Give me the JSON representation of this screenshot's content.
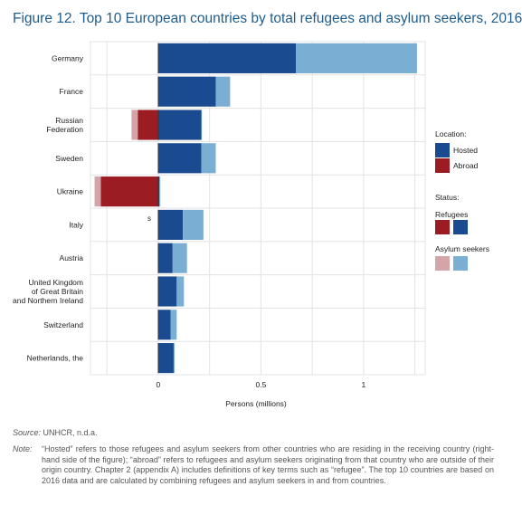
{
  "title": "Figure 12. Top 10 European countries by total refugees and asylum seekers, 2016",
  "source_label": "Source:",
  "source_text": "UNHCR, n.d.a.",
  "note_label": "Note:",
  "note_text": "“Hosted” refers to those refugees and asylum seekers from other countries who are residing in the receiving country (right-hand side of the figure); “abroad” refers to refugees and asylum seekers originating from that country who are outside of their origin country. Chapter 2 (appendix A) includes definitions of key terms such as “refugee”. The top 10 countries are based on 2016 data and are calculated by combining refugees and asylum seekers in and from countries.",
  "stray_label": "s",
  "legend": {
    "location_title": "Location:",
    "hosted": "Hosted",
    "abroad": "Abroad",
    "status_title": "Status:",
    "refugees": "Refugees",
    "asylum_seekers": "Asylum seekers"
  },
  "colors": {
    "hosted_refugees": "#1a4a8f",
    "hosted_asylum": "#7aaed3",
    "abroad_refugees": "#9b1c23",
    "abroad_asylum": "#d3a5a8",
    "grid": "#e3e3e3",
    "title": "#1d5c8c"
  },
  "chart_data": {
    "type": "bar",
    "orientation": "horizontal",
    "stacked": true,
    "xlabel": "Persons (millions)",
    "xlim": [
      -0.33,
      1.3
    ],
    "xticks": [
      0,
      0.5,
      1
    ],
    "xtick_labels": [
      "0",
      "0.5",
      "1"
    ],
    "grid": true,
    "legend_position": "right",
    "categories": [
      "Germany",
      "France",
      "Russian Federation",
      "Sweden",
      "Ukraine",
      "Italy",
      "Austria",
      "United Kingdom of Great Britain and Northern Ireland",
      "Switzerland",
      "Netherlands, the"
    ],
    "category_lines": [
      [
        "Germany"
      ],
      [
        "France"
      ],
      [
        "Russian",
        "Federation"
      ],
      [
        "Sweden"
      ],
      [
        "Ukraine"
      ],
      [
        "Italy"
      ],
      [
        "Austria"
      ],
      [
        "United Kingdom",
        "of Great Britain",
        "and Northern Ireland"
      ],
      [
        "Switzerland"
      ],
      [
        "Netherlands, the"
      ]
    ],
    "series": [
      {
        "name": "Hosted refugees",
        "location": "hosted",
        "status": "refugees",
        "values": [
          0.67,
          0.28,
          0.21,
          0.21,
          0.005,
          0.12,
          0.07,
          0.09,
          0.06,
          0.075
        ]
      },
      {
        "name": "Hosted asylum seekers",
        "location": "hosted",
        "status": "asylum",
        "values": [
          0.59,
          0.07,
          0.001,
          0.07,
          0.005,
          0.1,
          0.07,
          0.035,
          0.03,
          0.005
        ]
      },
      {
        "name": "Abroad refugees",
        "location": "abroad",
        "status": "refugees",
        "values": [
          0,
          0,
          -0.1,
          0,
          -0.28,
          0,
          0,
          0,
          0,
          0
        ]
      },
      {
        "name": "Abroad asylum seekers",
        "location": "abroad",
        "status": "asylum",
        "values": [
          0,
          0,
          -0.03,
          0,
          -0.03,
          0,
          0,
          0,
          0,
          0
        ]
      }
    ]
  }
}
